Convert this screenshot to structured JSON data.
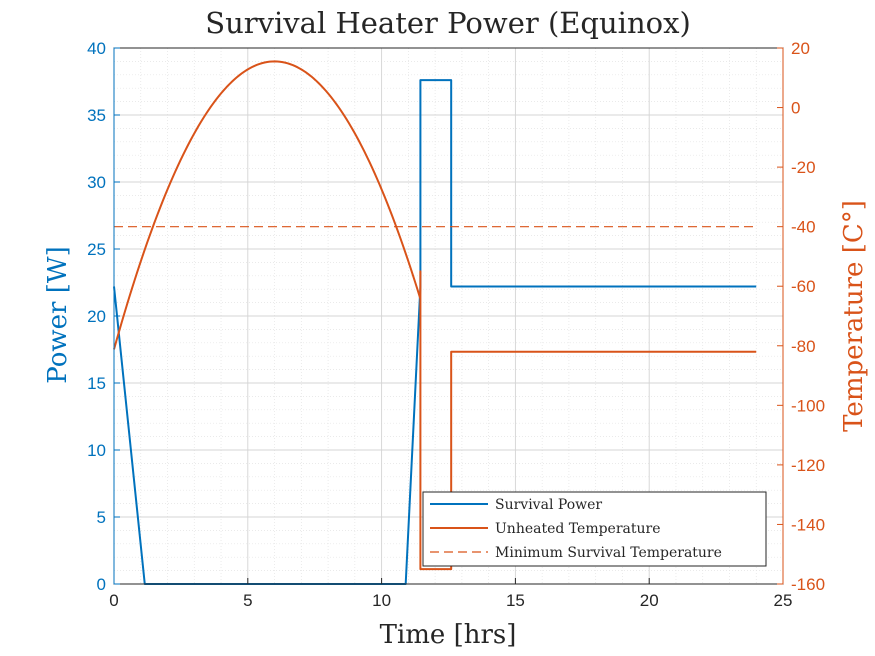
{
  "chart_data": {
    "type": "line",
    "title": "Survival Heater Power (Equinox)",
    "xlabel": "Time [hrs]",
    "ylabel_left": "Power [W]",
    "ylabel_right": "Temperature [C°]",
    "xlim": [
      0,
      25
    ],
    "ylim_left": [
      0,
      40
    ],
    "ylim_right": [
      -160,
      20
    ],
    "xticks": [
      0,
      5,
      10,
      15,
      20,
      25
    ],
    "yticks_left": [
      0,
      5,
      10,
      15,
      20,
      25,
      30,
      35,
      40
    ],
    "yticks_right": [
      -160,
      -140,
      -120,
      -100,
      -80,
      -60,
      -40,
      -20,
      0,
      20
    ],
    "grid": true,
    "minor_grid": true,
    "legend_position": "bottom-right",
    "colors": {
      "power": "#0072BD",
      "temperature": "#D95319",
      "axis_text": "#262626"
    },
    "series": [
      {
        "name": "Survival Power",
        "axis": "left",
        "style": "solid",
        "x": [
          0,
          1.15,
          10.9,
          11.45,
          11.45,
          12.6,
          12.6,
          24
        ],
        "y": [
          22.2,
          0,
          0,
          22.2,
          37.6,
          37.6,
          22.2,
          22.2
        ]
      },
      {
        "name": "Unheated Temperature",
        "axis": "right",
        "style": "solid",
        "curve": {
          "type": "parabola",
          "x_start": 0,
          "x_end": 11.45,
          "x_peak": 6,
          "y_peak": 15.5,
          "y_start": -81.2
        },
        "x": [
          11.45,
          11.45,
          12.6,
          12.6,
          24
        ],
        "y": [
          -55,
          -155,
          -155,
          -82,
          -82
        ]
      },
      {
        "name": "Minimum Survival Temperature",
        "axis": "right",
        "style": "dashed",
        "x": [
          0,
          24
        ],
        "y": [
          -40,
          -40
        ]
      }
    ]
  }
}
